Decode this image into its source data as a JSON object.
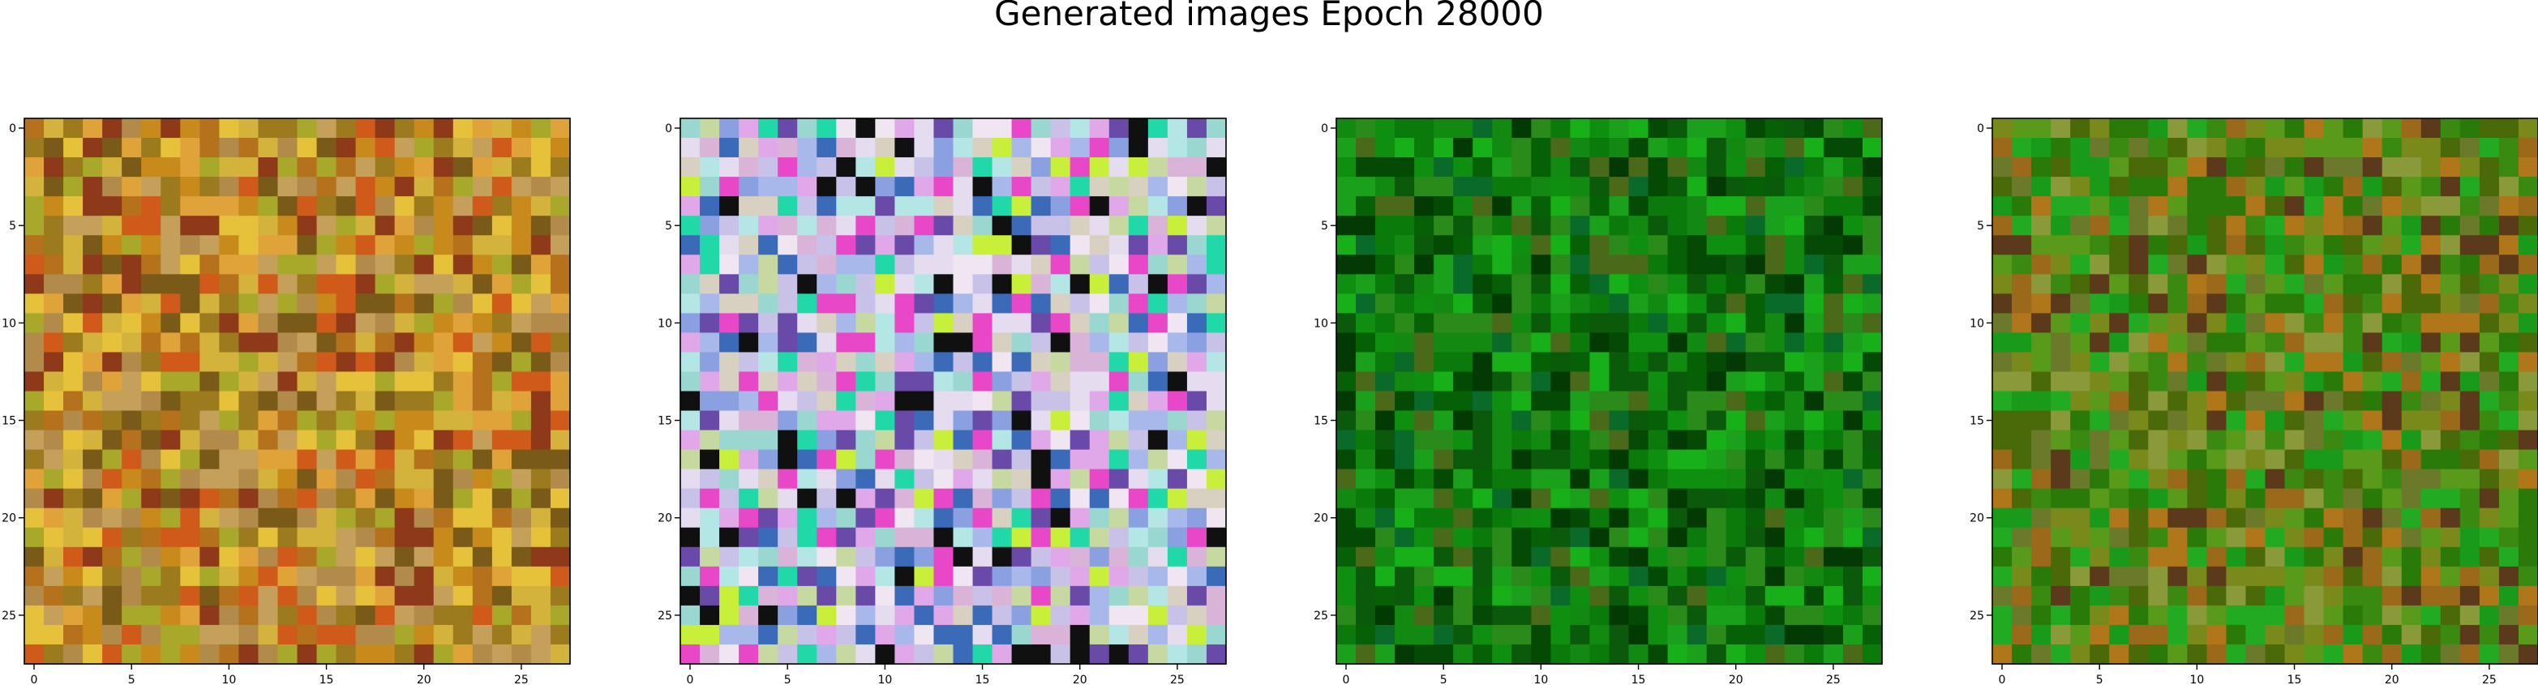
{
  "figure": {
    "title": "Generated images Epoch 28000"
  },
  "chart_data": [
    {
      "type": "heatmap",
      "grid_size": 28,
      "xticks": [
        0,
        5,
        10,
        15,
        20,
        25
      ],
      "yticks": [
        0,
        5,
        10,
        15,
        20,
        25
      ],
      "xlim": [
        -0.5,
        27.5
      ],
      "ylim": [
        27.5,
        -0.5
      ],
      "grid": false,
      "palette": [
        "#e0a33a",
        "#c98a1c",
        "#b5711b",
        "#d4b33c",
        "#9c7a1e",
        "#cf5a1a",
        "#a8a82a",
        "#c4a05a",
        "#8e3a1a",
        "#e6c23a",
        "#b28a4a",
        "#7a5a18"
      ],
      "seed": 11
    },
    {
      "type": "heatmap",
      "grid_size": 28,
      "xticks": [
        0,
        5,
        10,
        15,
        20,
        25
      ],
      "yticks": [
        0,
        5,
        10,
        15,
        20,
        25
      ],
      "xlim": [
        -0.5,
        27.5
      ],
      "ylim": [
        27.5,
        -0.5
      ],
      "grid": false,
      "palette": [
        "#c8c2e8",
        "#e6dcf0",
        "#a9b8ea",
        "#f0e6f2",
        "#9ad7d0",
        "#d9b4d8",
        "#c6d9a0",
        "#b4e6e6",
        "#e0a8e8",
        "#8aa0e0",
        "#d8d0c0",
        "#e848c8",
        "#20d8a8",
        "#6a4aa8",
        "#3a6ab8",
        "#101010",
        "#c8f03a"
      ],
      "seed": 23
    },
    {
      "type": "heatmap",
      "grid_size": 28,
      "xticks": [
        0,
        5,
        10,
        15,
        20,
        25
      ],
      "yticks": [
        0,
        5,
        10,
        15,
        20,
        25
      ],
      "xlim": [
        -0.5,
        27.5
      ],
      "ylim": [
        27.5,
        -0.5
      ],
      "grid": false,
      "palette": [
        "#0a7a0a",
        "#0f8f0f",
        "#066006",
        "#128a12",
        "#044a04",
        "#1ba01b",
        "#0a6a2a",
        "#2a8a1a",
        "#033a03",
        "#18b018",
        "#0b5a0b",
        "#4a6a1a"
      ],
      "seed": 37
    },
    {
      "type": "heatmap",
      "grid_size": 28,
      "xticks": [
        0,
        5,
        10,
        15,
        20,
        25
      ],
      "yticks": [
        0,
        5,
        10,
        15,
        20,
        25
      ],
      "xlim": [
        -0.5,
        27.5
      ],
      "ylim": [
        27.5,
        -0.5
      ],
      "grid": false,
      "palette": [
        "#3a8a12",
        "#5a9a1a",
        "#2a7a0a",
        "#7a8a1a",
        "#9a6a1a",
        "#1a9a1a",
        "#6a7a2a",
        "#8a9a3a",
        "#4a6a0a",
        "#b0761a",
        "#22aa22",
        "#5a3a1a"
      ],
      "seed": 53
    }
  ]
}
